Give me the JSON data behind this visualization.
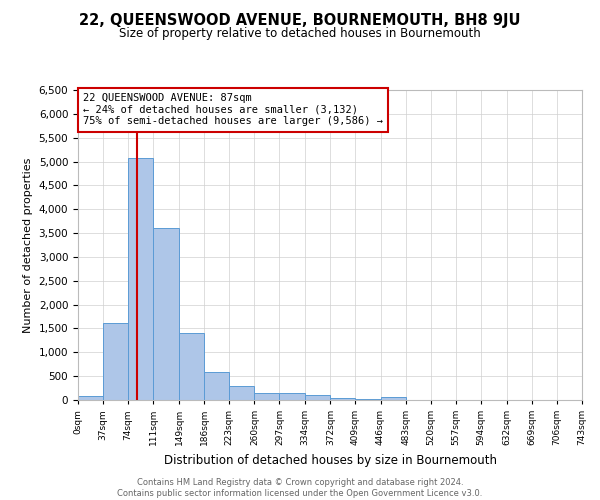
{
  "title": "22, QUEENSWOOD AVENUE, BOURNEMOUTH, BH8 9JU",
  "subtitle": "Size of property relative to detached houses in Bournemouth",
  "xlabel": "Distribution of detached houses by size in Bournemouth",
  "ylabel": "Number of detached properties",
  "footer_line1": "Contains HM Land Registry data © Crown copyright and database right 2024.",
  "footer_line2": "Contains public sector information licensed under the Open Government Licence v3.0.",
  "annotation_line1": "22 QUEENSWOOD AVENUE: 87sqm",
  "annotation_line2": "← 24% of detached houses are smaller (3,132)",
  "annotation_line3": "75% of semi-detached houses are larger (9,586) →",
  "property_value": 87,
  "bar_edges": [
    0,
    37,
    74,
    111,
    149,
    186,
    223,
    260,
    297,
    334,
    372,
    409,
    446,
    483,
    520,
    557,
    594,
    632,
    669,
    706,
    743
  ],
  "bar_heights": [
    75,
    1625,
    5075,
    3600,
    1400,
    590,
    300,
    155,
    150,
    100,
    50,
    30,
    55,
    0,
    0,
    0,
    0,
    0,
    0,
    0
  ],
  "bar_color": "#aec6e8",
  "bar_edge_color": "#5b9bd5",
  "vline_color": "#cc0000",
  "vline_x": 87,
  "annotation_box_color": "#ffffff",
  "annotation_box_edge": "#cc0000",
  "ylim": [
    0,
    6500
  ],
  "ytick_step": 500,
  "background_color": "#ffffff",
  "grid_color": "#d0d0d0",
  "title_fontsize": 10.5,
  "subtitle_fontsize": 8.5,
  "xlabel_fontsize": 8.5,
  "ylabel_fontsize": 8,
  "xtick_fontsize": 6.5,
  "ytick_fontsize": 7.5,
  "annotation_fontsize": 7.5,
  "footer_fontsize": 6
}
